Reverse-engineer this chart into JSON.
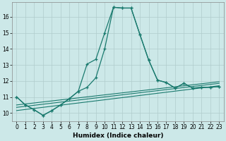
{
  "xlabel": "Humidex (Indice chaleur)",
  "bg_color": "#cce8e8",
  "grid_color": "#b0cccc",
  "line_color": "#1a7a6e",
  "x_ticks": [
    0,
    1,
    2,
    3,
    4,
    5,
    6,
    7,
    8,
    9,
    10,
    11,
    12,
    13,
    14,
    15,
    16,
    17,
    18,
    19,
    20,
    21,
    22,
    23
  ],
  "y_ticks": [
    10,
    11,
    12,
    13,
    14,
    15,
    16
  ],
  "ylim": [
    9.5,
    16.9
  ],
  "xlim": [
    -0.5,
    23.5
  ],
  "series1_x": [
    0,
    1,
    2,
    3,
    4,
    5,
    6,
    7,
    8,
    9,
    10,
    11,
    12,
    13,
    14,
    15,
    16,
    17,
    18,
    19,
    20,
    21,
    22,
    23
  ],
  "series1_y": [
    11.0,
    10.5,
    10.2,
    9.85,
    10.15,
    10.5,
    10.9,
    11.35,
    13.05,
    13.35,
    15.0,
    16.6,
    16.55,
    16.55,
    14.9,
    13.3,
    12.05,
    11.9,
    11.55,
    11.85,
    11.55,
    11.6,
    11.6,
    11.65
  ],
  "line2_x": [
    0,
    1,
    2,
    3,
    4,
    5,
    6,
    7,
    8,
    9,
    10,
    11,
    12,
    13,
    14,
    15,
    16,
    17,
    18,
    19,
    20,
    21,
    22,
    23
  ],
  "line2_y": [
    11.0,
    10.5,
    10.2,
    9.85,
    10.15,
    10.5,
    10.9,
    11.35,
    11.6,
    12.2,
    14.0,
    16.6,
    16.55,
    16.55,
    14.9,
    13.3,
    12.05,
    11.9,
    11.55,
    11.85,
    11.55,
    11.6,
    11.6,
    11.65
  ],
  "line3_x": [
    0,
    23
  ],
  "line3_y": [
    10.15,
    11.7
  ],
  "line4_x": [
    0,
    23
  ],
  "line4_y": [
    10.35,
    11.85
  ],
  "line5_x": [
    0,
    23
  ],
  "line5_y": [
    10.5,
    11.95
  ]
}
